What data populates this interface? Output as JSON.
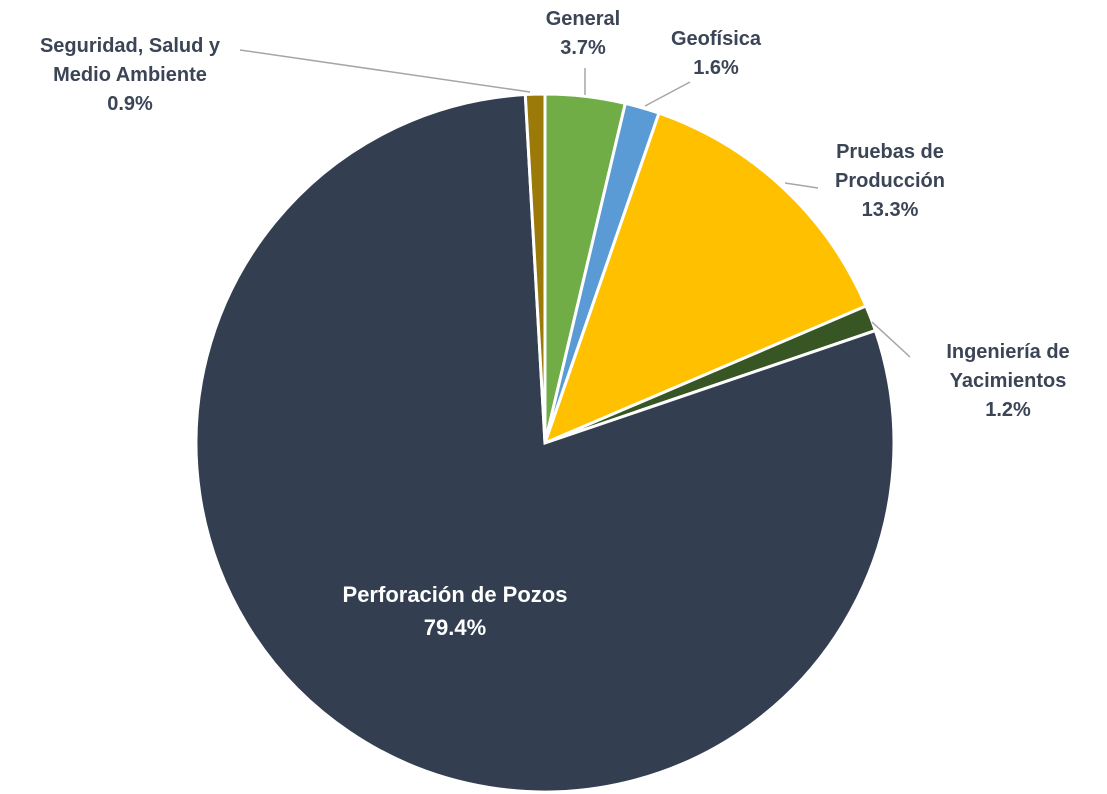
{
  "chart_data": {
    "type": "pie",
    "categories": [
      "General",
      "Geofísica",
      "Pruebas de Producción",
      "Ingeniería de Yacimientos",
      "Perforación de Pozos",
      "Seguridad, Salud y Medio Ambiente"
    ],
    "values": [
      3.7,
      1.6,
      13.3,
      1.2,
      79.4,
      0.9
    ],
    "value_labels": [
      "3.7%",
      "1.6%",
      "13.3%",
      "1.2%",
      "79.4%",
      "0.9%"
    ],
    "colors": [
      "#70ad47",
      "#5b9bd5",
      "#ffc000",
      "#375623",
      "#333f50",
      "#9c7a0a"
    ]
  }
}
